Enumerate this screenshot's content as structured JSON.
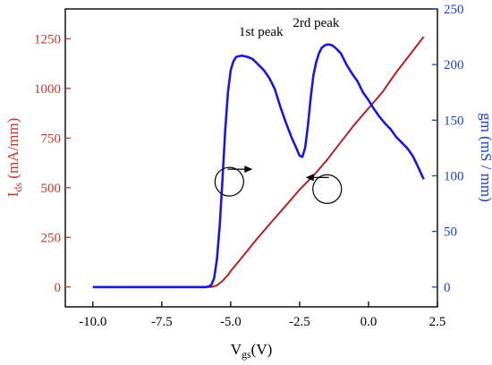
{
  "chart_data": {
    "type": "line",
    "title": "",
    "xlabel": {
      "main": "V",
      "sub": "gs",
      "suffix": "(V)"
    },
    "ylabel_left": {
      "main": "I",
      "sub": "ds",
      "suffix": " (mA/mm)"
    },
    "ylabel_right": "gm (mS / mm)",
    "xlim": [
      -11,
      2.5
    ],
    "ylim_left": [
      -100,
      1400
    ],
    "ylim_right": [
      -17.8,
      250
    ],
    "x_ticks": [
      "-10.0",
      "-7.5",
      "-5.0",
      "-2.5",
      "0.0",
      "2.5"
    ],
    "x_tick_values": [
      -10,
      -7.5,
      -5,
      -2.5,
      0,
      2.5
    ],
    "y_left_ticks": [
      "0",
      "250",
      "500",
      "750",
      "1000",
      "1250"
    ],
    "y_left_tick_values": [
      0,
      250,
      500,
      750,
      1000,
      1250
    ],
    "y_right_ticks": [
      "0",
      "50",
      "100",
      "150",
      "200",
      "250"
    ],
    "y_right_tick_values": [
      0,
      50,
      100,
      150,
      200,
      250
    ],
    "colors": {
      "ids": "#b22222",
      "gm": "#1a1ad6",
      "left_axis": "#c0392b",
      "right_axis": "#1f3fbf"
    },
    "series": [
      {
        "axis": "left",
        "x": [
          -10,
          -9,
          -8,
          -7,
          -6,
          -5.7,
          -5.5,
          -5.3,
          -5.1,
          -5.0,
          -4.7,
          -4.5,
          -4.0,
          -3.5,
          -3.0,
          -2.5,
          -2.0,
          -1.5,
          -1.0,
          -0.5,
          0,
          0.5,
          1.0,
          1.5,
          2.0
        ],
        "y": [
          0,
          0,
          0,
          0,
          0,
          0,
          8,
          30,
          60,
          80,
          130,
          165,
          250,
          330,
          410,
          490,
          560,
          640,
          730,
          820,
          900,
          980,
          1080,
          1170,
          1260
        ]
      },
      {
        "axis": "right",
        "x": [
          -10,
          -8,
          -6.5,
          -6,
          -5.9,
          -5.8,
          -5.7,
          -5.6,
          -5.5,
          -5.4,
          -5.3,
          -5.2,
          -5.1,
          -5.0,
          -4.9,
          -4.8,
          -4.6,
          -4.4,
          -4.2,
          -4.0,
          -3.8,
          -3.6,
          -3.4,
          -3.2,
          -3.0,
          -2.8,
          -2.6,
          -2.5,
          -2.4,
          -2.3,
          -2.2,
          -2.1,
          -2.0,
          -1.9,
          -1.8,
          -1.7,
          -1.6,
          -1.5,
          -1.4,
          -1.3,
          -1.2,
          -1.0,
          -0.8,
          -0.6,
          -0.4,
          -0.2,
          0.0,
          0.2,
          0.4,
          0.6,
          0.8,
          1.0,
          1.2,
          1.4,
          1.6,
          1.8,
          2.0
        ],
        "y": [
          0,
          0,
          0,
          0,
          0,
          0.5,
          2,
          8,
          25,
          55,
          95,
          140,
          175,
          195,
          203,
          207,
          208,
          207,
          205,
          200,
          195,
          188,
          178,
          162,
          148,
          135,
          124,
          118,
          117,
          125,
          145,
          170,
          190,
          202,
          210,
          215,
          217,
          218,
          218,
          217,
          215,
          210,
          200,
          192,
          185,
          175,
          168,
          160,
          153,
          147,
          142,
          135,
          130,
          125,
          118,
          108,
          97
        ]
      }
    ],
    "annotations": [
      {
        "text": "1st peak",
        "x": -3.9,
        "y_right": 226
      },
      {
        "text": "2rd peak",
        "x": -1.9,
        "y_right": 234
      }
    ],
    "markers": [
      {
        "x": -5.05,
        "y_left": 530,
        "points_to": "right axis"
      },
      {
        "x": -1.5,
        "y_left": 493,
        "points_to": "left axis"
      }
    ]
  }
}
